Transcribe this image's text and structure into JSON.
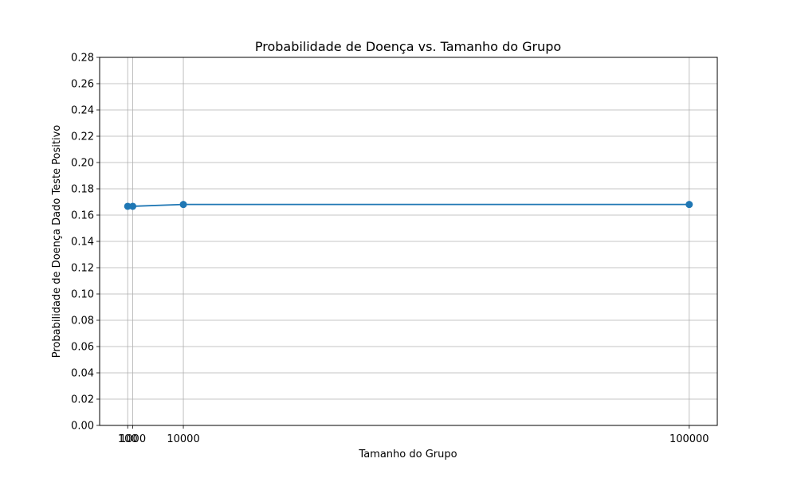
{
  "chart_data": {
    "type": "line",
    "title": "Probabilidade de Doença vs. Tamanho do Grupo",
    "xlabel": "Tamanho do Grupo",
    "ylabel": "Probabilidade de Doença Dado Teste Positivo",
    "x": [
      100,
      1000,
      10000,
      100000
    ],
    "x_tick_labels": [
      "100",
      "1000",
      "10000",
      "100000"
    ],
    "series": [
      {
        "values": [
          0.1667,
          0.1667,
          0.1681,
          0.1681
        ],
        "color": "#1f77b4"
      }
    ],
    "y_ticks": [
      0.0,
      0.02,
      0.04,
      0.06,
      0.08,
      0.1,
      0.12,
      0.14,
      0.16,
      0.18,
      0.2,
      0.22,
      0.24,
      0.26,
      0.28
    ],
    "xlim": [
      -4895,
      104995
    ],
    "ylim": [
      0,
      0.28
    ],
    "grid": true,
    "marker": "circle",
    "grid_color": "#b0b0b0"
  }
}
